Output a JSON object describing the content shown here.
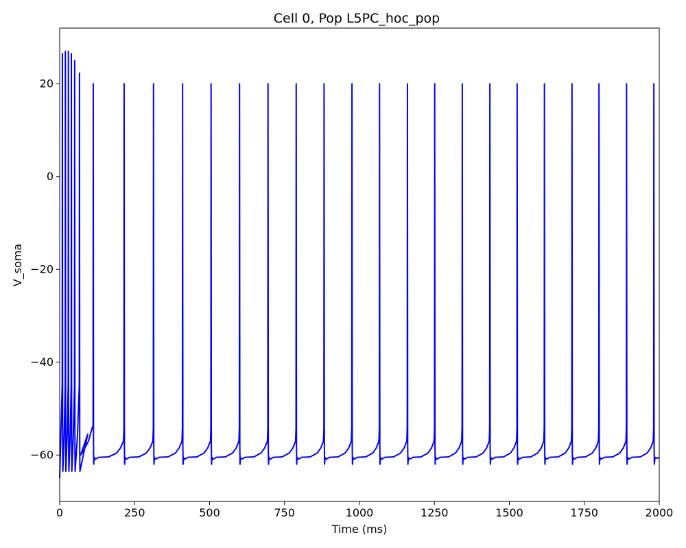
{
  "chart_data": {
    "type": "line",
    "title": "Cell 0, Pop L5PC_hoc_pop",
    "xlabel": "Time (ms)",
    "ylabel": "V_soma",
    "xlim": [
      0,
      2000
    ],
    "ylim": [
      -70,
      32
    ],
    "xticks": [
      0,
      250,
      500,
      750,
      1000,
      1250,
      1500,
      1750,
      2000
    ],
    "yticks": [
      -60,
      -40,
      -20,
      0,
      20
    ],
    "grid": false,
    "legend": false,
    "line_color": "#0000ff",
    "series": [
      {
        "spike_times_ms": [
          9,
          19,
          29,
          39,
          50,
          66,
          112,
          215,
          313,
          410,
          505,
          600,
          695,
          789,
          882,
          975,
          1067,
          1160,
          1251,
          1343,
          1435,
          1526,
          1617,
          1709,
          1799,
          1891,
          1982
        ],
        "spike_peaks_mv": [
          26.5,
          27,
          27,
          26.5,
          25,
          22.3,
          20,
          20,
          20,
          20,
          20,
          20,
          20,
          20,
          20,
          20,
          20,
          20,
          20,
          20,
          20,
          20,
          20,
          20,
          20,
          20,
          20
        ],
        "afterhyperpolarization_trough_mv": -62,
        "early_trough_mv": -63.5,
        "resting_baseline_mv": -60.5,
        "pre_spike_ramp_mv": -57,
        "initial_value_mv": -65
      }
    ]
  }
}
